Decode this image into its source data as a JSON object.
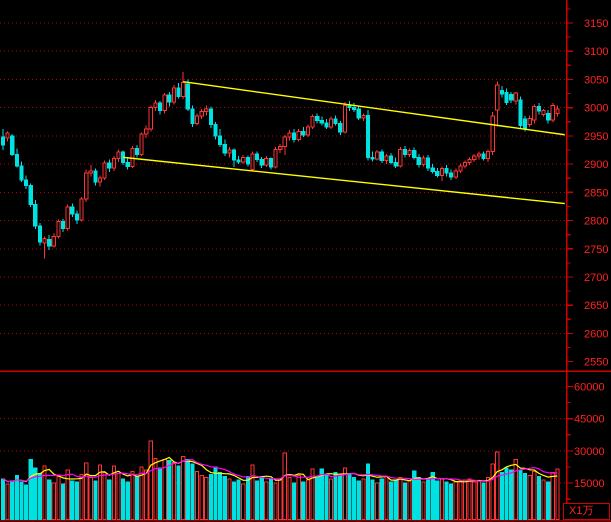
{
  "window": {
    "background": "#000000"
  },
  "colors": {
    "up": "#ff3434",
    "down": "#00e2e2",
    "gridline": "#b40000",
    "axis_line": "#d40000",
    "label": "#ff2222",
    "separator": "#d40000",
    "bottom_border": "#8b0000",
    "channel": "#ffff00",
    "vol_ma5": "#ffff00",
    "vol_ma10": "#ff00ff",
    "background": "#000000"
  },
  "chart_data": {
    "type": "candlestick",
    "title": "",
    "legend": [],
    "grid": true,
    "price_axis": {
      "side": "right",
      "tick_labels": [
        "3150",
        "3100",
        "3050",
        "3000",
        "2950",
        "2900",
        "2850",
        "2800",
        "2750",
        "2700",
        "2650",
        "2600",
        "2550"
      ],
      "gridline_values": [
        3150,
        3100,
        3050,
        3000,
        2950,
        2900,
        2850,
        2800,
        2750,
        2700,
        2650,
        2600
      ],
      "major_tick_step": 50,
      "minor_tick_step": 25,
      "ylim": [
        2533,
        3191
      ]
    },
    "volume_axis": {
      "side": "right",
      "tick_labels": [
        "60000",
        "45000",
        "30000",
        "15000"
      ],
      "gridline_values": [
        45000,
        30000,
        15000
      ],
      "major_tick_step": 15000,
      "minor_tick_step": 7500,
      "ylim": [
        0,
        67000
      ],
      "unit_label": "X1万"
    },
    "candles_ohlc": [
      [
        2948,
        2962,
        2925,
        2934
      ],
      [
        2946,
        2958,
        2940,
        2955
      ],
      [
        2950,
        2953,
        2914,
        2917
      ],
      [
        2917,
        2928,
        2894,
        2897
      ],
      [
        2897,
        2905,
        2868,
        2872
      ],
      [
        2872,
        2880,
        2856,
        2862
      ],
      [
        2862,
        2866,
        2824,
        2828
      ],
      [
        2828,
        2836,
        2785,
        2790
      ],
      [
        2790,
        2796,
        2756,
        2762
      ],
      [
        2760,
        2772,
        2733,
        2768
      ],
      [
        2766,
        2774,
        2748,
        2755
      ],
      [
        2755,
        2778,
        2752,
        2772
      ],
      [
        2772,
        2802,
        2768,
        2798
      ],
      [
        2798,
        2803,
        2780,
        2786
      ],
      [
        2786,
        2828,
        2782,
        2824
      ],
      [
        2824,
        2830,
        2806,
        2812
      ],
      [
        2812,
        2818,
        2794,
        2801
      ],
      [
        2801,
        2842,
        2798,
        2838
      ],
      [
        2838,
        2890,
        2833,
        2884
      ],
      [
        2884,
        2898,
        2878,
        2888
      ],
      [
        2888,
        2892,
        2862,
        2868
      ],
      [
        2868,
        2880,
        2860,
        2875
      ],
      [
        2875,
        2906,
        2872,
        2902
      ],
      [
        2902,
        2908,
        2886,
        2893
      ],
      [
        2893,
        2914,
        2888,
        2910
      ],
      [
        2910,
        2926,
        2904,
        2921
      ],
      [
        2921,
        2924,
        2898,
        2903
      ],
      [
        2903,
        2910,
        2890,
        2896
      ],
      [
        2896,
        2932,
        2893,
        2928
      ],
      [
        2928,
        2934,
        2912,
        2917
      ],
      [
        2917,
        2956,
        2914,
        2953
      ],
      [
        2953,
        2968,
        2946,
        2962
      ],
      [
        2962,
        3004,
        2958,
        3000
      ],
      [
        3000,
        3014,
        2994,
        3008
      ],
      [
        3008,
        3012,
        2988,
        2995
      ],
      [
        2995,
        3026,
        2990,
        3022
      ],
      [
        3022,
        3028,
        3002,
        3010
      ],
      [
        3010,
        3040,
        3006,
        3035
      ],
      [
        3035,
        3044,
        3016,
        3020
      ],
      [
        3020,
        3063,
        3015,
        3045
      ],
      [
        3042,
        3050,
        2994,
        2998
      ],
      [
        2998,
        3004,
        2966,
        2972
      ],
      [
        2972,
        2990,
        2968,
        2985
      ],
      [
        2985,
        2998,
        2980,
        2993
      ],
      [
        2993,
        3004,
        2986,
        2998
      ],
      [
        2998,
        3002,
        2964,
        2970
      ],
      [
        2970,
        2975,
        2944,
        2950
      ],
      [
        2950,
        2962,
        2930,
        2935
      ],
      [
        2935,
        2944,
        2914,
        2920
      ],
      [
        2920,
        2930,
        2912,
        2925
      ],
      [
        2925,
        2928,
        2895,
        2907
      ],
      [
        2907,
        2914,
        2900,
        2904
      ],
      [
        2904,
        2916,
        2900,
        2912
      ],
      [
        2912,
        2915,
        2896,
        2900
      ],
      [
        2890,
        2922,
        2888,
        2918
      ],
      [
        2918,
        2922,
        2904,
        2908
      ],
      [
        2908,
        2913,
        2893,
        2898
      ],
      [
        2898,
        2914,
        2895,
        2910
      ],
      [
        2910,
        2912,
        2890,
        2895
      ],
      [
        2895,
        2930,
        2892,
        2926
      ],
      [
        2926,
        2936,
        2920,
        2931
      ],
      [
        2931,
        2952,
        2916,
        2948
      ],
      [
        2948,
        2960,
        2942,
        2955
      ],
      [
        2955,
        2962,
        2938,
        2944
      ],
      [
        2944,
        2962,
        2940,
        2958
      ],
      [
        2958,
        2966,
        2948,
        2952
      ],
      [
        2952,
        2970,
        2948,
        2966
      ],
      [
        2966,
        2988,
        2962,
        2984
      ],
      [
        2984,
        2990,
        2972,
        2977
      ],
      [
        2977,
        2984,
        2968,
        2973
      ],
      [
        2973,
        2980,
        2962,
        2966
      ],
      [
        2966,
        2984,
        2962,
        2980
      ],
      [
        2980,
        2986,
        2968,
        2972
      ],
      [
        2972,
        2976,
        2952,
        2957
      ],
      [
        2957,
        3010,
        2954,
        3004
      ],
      [
        3004,
        3012,
        2994,
        3000
      ],
      [
        3000,
        3008,
        2992,
        2997
      ],
      [
        2998,
        3002,
        2978,
        2982
      ],
      [
        2982,
        2990,
        2976,
        2986
      ],
      [
        2986,
        2996,
        2906,
        2912
      ],
      [
        2912,
        2922,
        2905,
        2909
      ],
      [
        2909,
        2925,
        2906,
        2921
      ],
      [
        2921,
        2926,
        2902,
        2906
      ],
      [
        2906,
        2918,
        2900,
        2914
      ],
      [
        2914,
        2920,
        2899,
        2903
      ],
      [
        2903,
        2912,
        2893,
        2897
      ],
      [
        2897,
        2930,
        2894,
        2926
      ],
      [
        2926,
        2932,
        2912,
        2917
      ],
      [
        2917,
        2928,
        2913,
        2924
      ],
      [
        2924,
        2929,
        2908,
        2912
      ],
      [
        2912,
        2918,
        2894,
        2899
      ],
      [
        2899,
        2915,
        2896,
        2911
      ],
      [
        2911,
        2916,
        2888,
        2893
      ],
      [
        2893,
        2900,
        2883,
        2887
      ],
      [
        2887,
        2893,
        2876,
        2880
      ],
      [
        2880,
        2896,
        2870,
        2892
      ],
      [
        2892,
        2898,
        2878,
        2884
      ],
      [
        2884,
        2890,
        2872,
        2877
      ],
      [
        2877,
        2892,
        2874,
        2888
      ],
      [
        2888,
        2901,
        2884,
        2897
      ],
      [
        2897,
        2906,
        2892,
        2903
      ],
      [
        2903,
        2912,
        2898,
        2908
      ],
      [
        2908,
        2918,
        2904,
        2914
      ],
      [
        2914,
        2922,
        2908,
        2918
      ],
      [
        2918,
        2922,
        2906,
        2910
      ],
      [
        2910,
        2926,
        2904,
        2922
      ],
      [
        2922,
        2992,
        2916,
        2985
      ],
      [
        2996,
        3046,
        2967,
        3040
      ],
      [
        3030,
        3038,
        3018,
        3024
      ],
      [
        3027,
        3034,
        3005,
        3009
      ],
      [
        3023,
        3028,
        3008,
        3014
      ],
      [
        3012,
        3028,
        3006,
        3026
      ],
      [
        3014,
        3020,
        2962,
        2968
      ],
      [
        2980,
        2985,
        2958,
        2963
      ],
      [
        2970,
        2986,
        2966,
        2981
      ],
      [
        2978,
        3006,
        2972,
        3002
      ],
      [
        3002,
        3008,
        2988,
        2994
      ],
      [
        2988,
        2998,
        2984,
        2995
      ],
      [
        2990,
        2996,
        2972,
        2978
      ],
      [
        2978,
        3008,
        2974,
        3004
      ],
      [
        2990,
        3004,
        2984,
        2998
      ]
    ],
    "volumes": [
      17000,
      14500,
      16000,
      18500,
      15500,
      14000,
      25900,
      22000,
      19500,
      23000,
      16500,
      15000,
      18000,
      14500,
      21000,
      16000,
      15500,
      19000,
      24400,
      17500,
      16000,
      23500,
      20000,
      16500,
      23000,
      19500,
      17000,
      15500,
      20500,
      18000,
      22500,
      21000,
      34600,
      26500,
      22000,
      26000,
      25500,
      24500,
      23000,
      27500,
      26000,
      24000,
      20500,
      18500,
      17500,
      19000,
      22500,
      20000,
      18000,
      17000,
      15500,
      16500,
      14500,
      18000,
      23500,
      16000,
      18000,
      15500,
      17000,
      15000,
      16500,
      29000,
      17500,
      15000,
      18500,
      15500,
      16500,
      21500,
      18000,
      21500,
      19000,
      17000,
      20000,
      18500,
      22000,
      19500,
      17500,
      16000,
      17000,
      24000,
      16500,
      15000,
      17000,
      18000,
      15500,
      16500,
      17500,
      15000,
      16000,
      20600,
      17500,
      15500,
      16500,
      20000,
      16000,
      17000,
      15500,
      14500,
      15500,
      16000,
      16500,
      17000,
      15500,
      16000,
      15000,
      17500,
      24000,
      29500,
      20000,
      22000,
      21000,
      26000,
      21000,
      19500,
      18500,
      20500,
      18000,
      16500,
      15500,
      20000,
      21500
    ],
    "volume_ma_lines": [
      {
        "name": "volume-ma5",
        "period": 5,
        "color": "#ffff00"
      },
      {
        "name": "volume-ma10",
        "period": 10,
        "color": "#ff00ff"
      }
    ],
    "trend_lines": [
      {
        "name": "channel-upper",
        "x1_bar": 39,
        "price1": 3046,
        "x2_bar": 121.6,
        "price2": 2952,
        "color": "#ffff00"
      },
      {
        "name": "channel-lower",
        "x1_bar": 26,
        "price1": 2912,
        "x2_bar": 121.6,
        "price2": 2830,
        "color": "#ffff00"
      }
    ]
  }
}
